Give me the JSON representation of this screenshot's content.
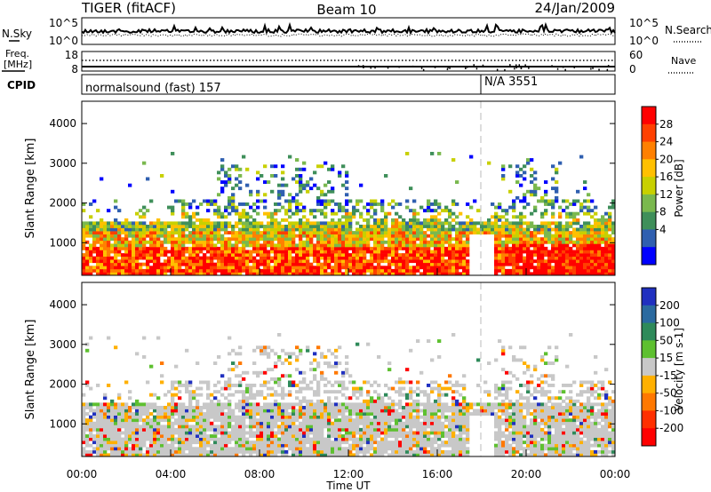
{
  "header": {
    "radar": "TIGER (fitACF)",
    "beam": "Beam 10",
    "date": "24/Jan/2009"
  },
  "noise_panel": {
    "left_label": "N.Sky",
    "left_ticks": [
      "10^5",
      "10^0"
    ],
    "right_label": "N.Search",
    "right_ticks": [
      "10^5",
      "10^0"
    ]
  },
  "freq_panel": {
    "left_label_1": "Freq.",
    "left_label_2": "[MHz]",
    "left_ticks": [
      "18",
      "8"
    ],
    "right_label": "Nave",
    "right_ticks": [
      "60",
      "0"
    ]
  },
  "cpid_panel": {
    "label": "CPID",
    "segment_1": "normalsound (fast) 157",
    "segment_2": "N/A 3551"
  },
  "power_panel": {
    "colorbar_label": "Power [dB]",
    "colorbar_ticks": [
      "28",
      "24",
      "20",
      "16",
      "12",
      "8",
      "4"
    ],
    "colors": [
      "#ff0000",
      "#ff4000",
      "#ff8000",
      "#ffc000",
      "#c8d000",
      "#7ab84e",
      "#3f8f5a",
      "#2f5fb0",
      "#0000ff"
    ]
  },
  "velocity_panel": {
    "colorbar_label": "Velocity [m s-1]",
    "colorbar_ticks": [
      "200",
      "100",
      "50",
      "15",
      "-15",
      "-50",
      "-100",
      "-200"
    ],
    "colors": [
      "#2030c0",
      "#2a6aa0",
      "#2e8a5a",
      "#5ec030",
      "#c8c8c8",
      "#ffb000",
      "#ff7800",
      "#ff3000",
      "#ff0000"
    ]
  },
  "axes": {
    "ylabel": "Slant Range [km]",
    "yticks": [
      "4000",
      "3000",
      "2000",
      "1000"
    ],
    "xticks": [
      "00:00",
      "04:00",
      "08:00",
      "12:00",
      "16:00",
      "20:00",
      "00:00"
    ],
    "xlabel": "Time UT"
  },
  "chart_data": [
    {
      "type": "heatmap",
      "name": "Power",
      "x_range_hours": [
        0,
        24
      ],
      "y_range_km": [
        180,
        4560
      ],
      "colorbar_range_db": [
        0,
        32
      ],
      "colorbar_label": "Power [dB]",
      "control_change_hour": 18.0
    },
    {
      "type": "heatmap",
      "name": "Velocity",
      "x_range_hours": [
        0,
        24
      ],
      "y_range_km": [
        180,
        4560
      ],
      "colorbar_levels": [
        -200,
        -100,
        -50,
        -15,
        15,
        50,
        100,
        200
      ],
      "colorbar_label": "Velocity [m s-1]",
      "control_change_hour": 18.0
    }
  ]
}
